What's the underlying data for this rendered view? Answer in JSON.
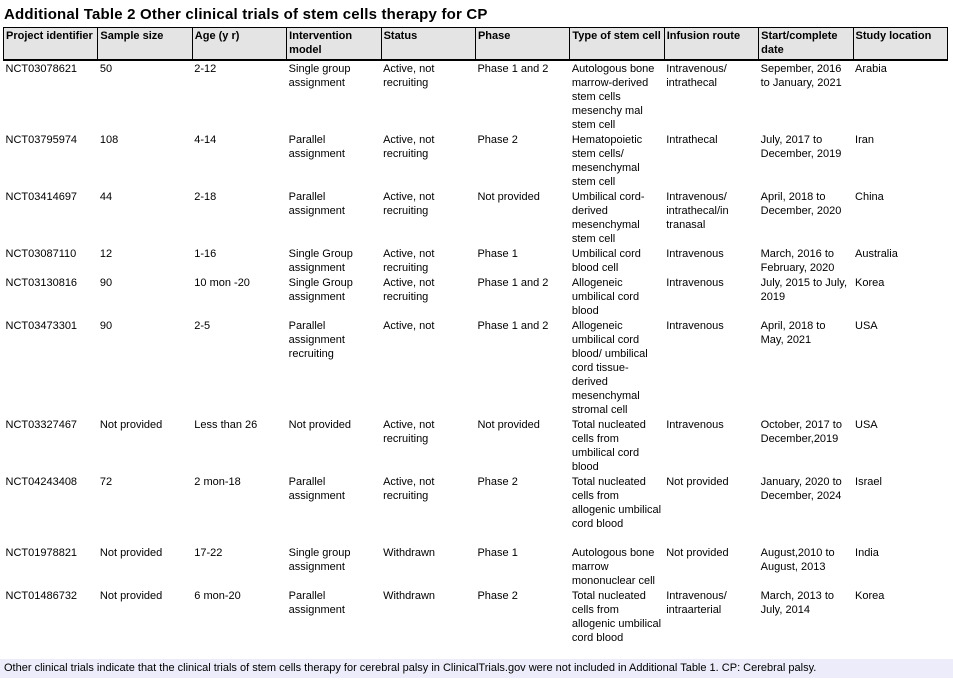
{
  "title": "Additional Table 2 Other clinical trials of stem cells therapy for CP",
  "footnote": "Other clinical trials indicate that the clinical trials of stem cells therapy for cerebral palsy in ClinicalTrials.gov were not included in Additional Table 1. CP: Cerebral palsy.",
  "colors": {
    "header_bg": "#e4e4e4",
    "footnote_bg": "#ececfa",
    "border": "#000000",
    "text": "#000000",
    "page_bg": "#ffffff"
  },
  "table": {
    "columns": [
      "Project identifier",
      "Sample size",
      "Age (y r)",
      "Intervention model",
      "Status",
      "Phase",
      "Type of stem cell",
      "Infusion route",
      "Start/complete date",
      "Study location"
    ],
    "field_names": [
      "project-identifier",
      "sample-size",
      "age",
      "intervention-model",
      "status",
      "phase",
      "stem-cell-type",
      "infusion-route",
      "start-complete-date",
      "study-location"
    ],
    "rows": [
      [
        "NCT03078621",
        "50",
        "2-12",
        "Single group assignment",
        "Active, not recruiting",
        "Phase 1 and 2",
        "Autologous bone marrow-derived stem cells mesenchy mal stem cell",
        "Intravenous/ intrathecal",
        "Sepember, 2016 to January, 2021",
        "Arabia"
      ],
      [
        "NCT03795974",
        "108",
        "4-14",
        "Parallel assignment",
        "Active, not recruiting",
        "Phase 2",
        "Hematopoietic stem cells/ mesenchymal stem cell",
        "Intrathecal",
        "July, 2017 to December, 2019",
        "Iran"
      ],
      [
        "NCT03414697",
        "44",
        "2-18",
        "Parallel assignment",
        "Active, not recruiting",
        "Not provided",
        "Umbilical cord-derived mesenchymal stem cell",
        "Intravenous/ intrathecal/in tranasal",
        "April, 2018 to December, 2020",
        "China"
      ],
      [
        "NCT03087110",
        "12",
        "1-16",
        "Single Group assignment",
        "Active, not recruiting",
        "Phase 1",
        "Umbilical cord blood cell",
        "Intravenous",
        "March, 2016 to February, 2020",
        "Australia"
      ],
      [
        "NCT03130816",
        "90",
        "10 mon -20",
        "Single Group assignment",
        "Active, not recruiting",
        "Phase 1 and 2",
        "Allogeneic umbilical cord blood",
        "Intravenous",
        "July, 2015 to July, 2019",
        "Korea"
      ],
      [
        "NCT03473301",
        "90",
        "2-5",
        "Parallel assignment recruiting",
        "Active, not",
        "Phase 1 and 2",
        "Allogeneic umbilical cord blood/ umbilical cord tissue-derived mesenchymal stromal cell",
        "Intravenous",
        "April, 2018 to May, 2021",
        "USA"
      ],
      [
        "NCT03327467",
        "Not provided",
        "Less than 26",
        "Not provided",
        "Active, not recruiting",
        "Not provided",
        "Total nucleated cells from umbilical cord blood",
        "Intravenous",
        "October, 2017 to December,2019",
        "USA"
      ],
      [
        "NCT04243408",
        "72",
        "2 mon-18",
        "Parallel assignment",
        "Active, not recruiting",
        "Phase 2",
        "Total nucleated cells from allogenic umbilical cord blood",
        "Not provided",
        "January, 2020 to December, 2024",
        "Israel"
      ],
      [
        "NCT01978821",
        "Not provided",
        "17-22",
        "Single group assignment",
        "Withdrawn",
        "Phase 1",
        "Autologous bone marrow mononuclear cell",
        "Not provided",
        "August,2010 to August, 2013",
        "India"
      ],
      [
        "NCT01486732",
        "Not provided",
        "6 mon-20",
        "Parallel assignment",
        "Withdrawn",
        "Phase 2",
        "Total nucleated cells from allogenic umbilical cord blood",
        "Intravenous/ intraarterial",
        "March, 2013 to July, 2014",
        "Korea"
      ]
    ]
  }
}
